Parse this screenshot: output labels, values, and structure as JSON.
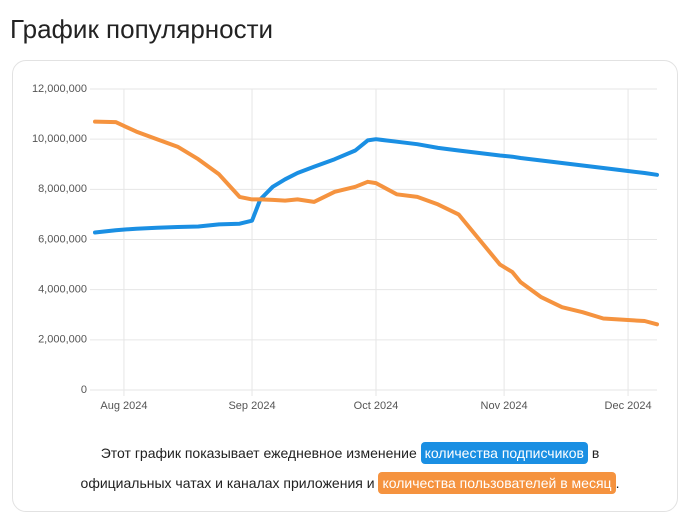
{
  "chart_data": {
    "type": "line",
    "title": "График популярности",
    "x": [
      207,
      212,
      217,
      222,
      227,
      232,
      237,
      242,
      245,
      247,
      250,
      253,
      256,
      260,
      265,
      270,
      273,
      275,
      280,
      285,
      290,
      295,
      300,
      305,
      308,
      310,
      315,
      320,
      325,
      330,
      335,
      340,
      343
    ],
    "xlim": [
      207,
      343
    ],
    "xticks": [
      {
        "value": 214,
        "label": "Aug 2024"
      },
      {
        "value": 245,
        "label": "Sep 2024"
      },
      {
        "value": 275,
        "label": "Oct 2024"
      },
      {
        "value": 306,
        "label": "Nov 2024"
      },
      {
        "value": 336,
        "label": "Dec 2024"
      }
    ],
    "ylim": [
      0,
      12000000
    ],
    "yticks": [
      0,
      {
        "value": 2000000,
        "label": "2,000,000"
      },
      {
        "value": 4000000,
        "label": "4,000,000"
      },
      {
        "value": 6000000,
        "label": "6,000,000"
      },
      {
        "value": 8000000,
        "label": "8,000,000"
      },
      {
        "value": 10000000,
        "label": "10,000,000"
      },
      {
        "value": 12000000,
        "label": "12,000,000"
      }
    ],
    "grid": true,
    "series": [
      {
        "name": "количества подписчиков",
        "color": "#1a8fe3",
        "values": [
          6280000,
          6370000,
          6430000,
          6470000,
          6500000,
          6520000,
          6600000,
          6630000,
          6750000,
          7600000,
          8100000,
          8400000,
          8650000,
          8900000,
          9200000,
          9550000,
          9950000,
          10000000,
          9900000,
          9800000,
          9650000,
          9550000,
          9450000,
          9350000,
          9300000,
          9250000,
          9150000,
          9050000,
          8950000,
          8850000,
          8750000,
          8650000,
          8580000
        ]
      },
      {
        "name": "количества пользователей в месяц",
        "color": "#f5933f",
        "values": [
          10700000,
          10680000,
          10300000,
          10000000,
          9700000,
          9200000,
          8600000,
          7700000,
          7600000,
          7600000,
          7580000,
          7550000,
          7600000,
          7500000,
          7900000,
          8100000,
          8300000,
          8250000,
          7800000,
          7700000,
          7400000,
          7000000,
          6000000,
          5000000,
          4700000,
          4300000,
          3700000,
          3300000,
          3100000,
          2850000,
          2800000,
          2750000,
          2620000
        ]
      }
    ],
    "caption": [
      "Этот график показывает ежедневное изменение",
      "в",
      "официальных чатах и каналах приложения и",
      "."
    ]
  }
}
